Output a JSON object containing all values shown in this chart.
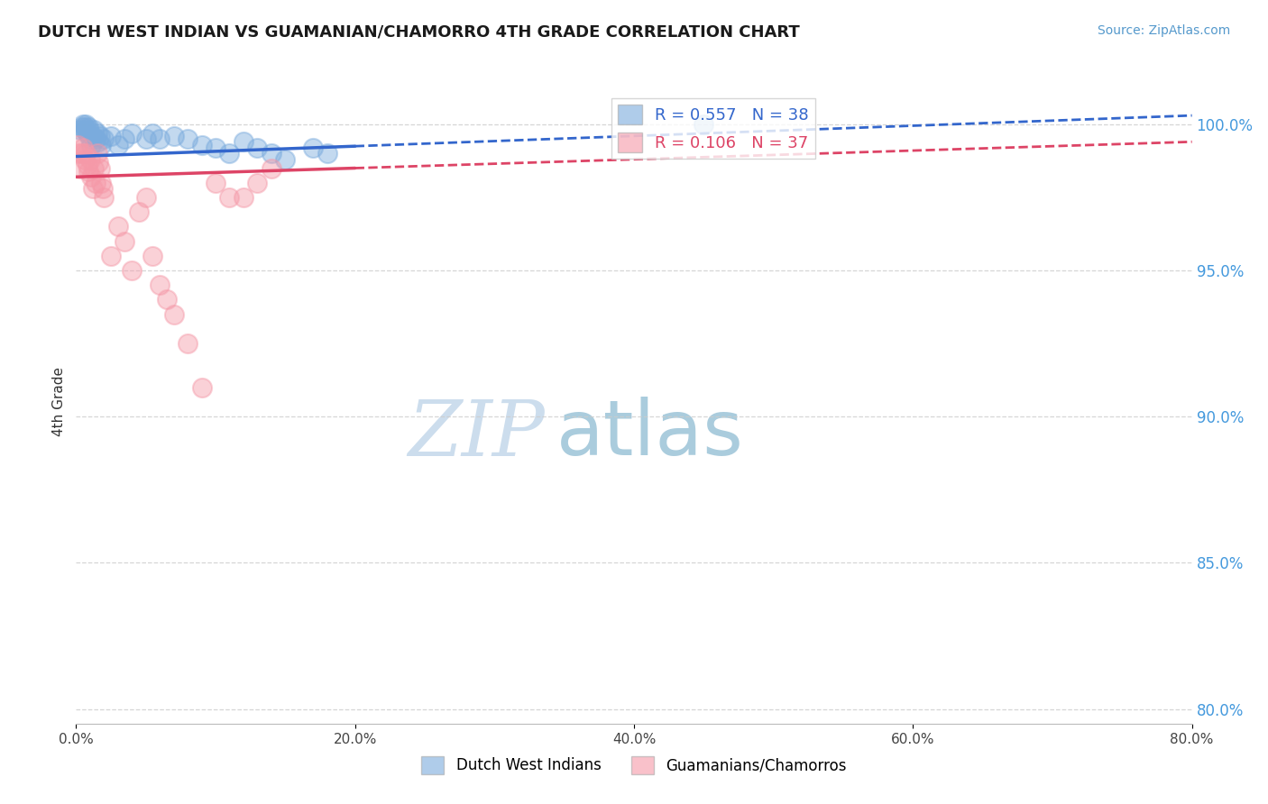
{
  "title": "DUTCH WEST INDIAN VS GUAMANIAN/CHAMORRO 4TH GRADE CORRELATION CHART",
  "source_text": "Source: ZipAtlas.com",
  "ylabel": "4th Grade",
  "x_ticks_labels": [
    "0.0%",
    "20.0%",
    "40.0%",
    "60.0%",
    "80.0%"
  ],
  "x_ticks_vals": [
    0.0,
    20.0,
    40.0,
    60.0,
    80.0
  ],
  "y_ticks_labels": [
    "80.0%",
    "85.0%",
    "90.0%",
    "95.0%",
    "100.0%"
  ],
  "y_ticks_vals": [
    80.0,
    85.0,
    90.0,
    95.0,
    100.0
  ],
  "blue_R": "0.557",
  "blue_N": "38",
  "pink_R": "0.106",
  "pink_N": "37",
  "blue_scatter_color": "#7aabdd",
  "pink_scatter_color": "#f599a8",
  "trend_blue_color": "#3366cc",
  "trend_pink_color": "#dd4466",
  "legend_text_blue_color": "#3366cc",
  "legend_text_pink_color": "#dd4466",
  "y_tick_color": "#4499dd",
  "watermark_zip_color": "#ccdded",
  "watermark_atlas_color": "#aaccdd",
  "title_color": "#1a1a1a",
  "source_color": "#5599cc",
  "xlim": [
    0,
    80
  ],
  "ylim": [
    79.5,
    101.5
  ],
  "blue_trend_x0": 0.0,
  "blue_trend_y0": 98.9,
  "blue_trend_x1": 80.0,
  "blue_trend_y1": 100.3,
  "pink_trend_x0": 0.0,
  "pink_trend_y0": 98.2,
  "pink_trend_x1": 80.0,
  "pink_trend_y1": 99.4,
  "trend_solid_xmax": 20.0,
  "blue_x": [
    0.3,
    0.4,
    0.5,
    0.6,
    0.65,
    0.7,
    0.8,
    0.85,
    0.9,
    1.0,
    1.1,
    1.2,
    1.3,
    1.4,
    1.5,
    1.6,
    1.7,
    1.8,
    2.0,
    2.5,
    3.0,
    3.5,
    4.0,
    5.0,
    5.5,
    6.0,
    7.0,
    8.0,
    9.0,
    10.0,
    11.0,
    12.0,
    13.0,
    14.0,
    15.0,
    17.0,
    18.0,
    45.0
  ],
  "blue_y": [
    99.8,
    99.9,
    100.0,
    99.9,
    99.8,
    100.0,
    99.7,
    99.8,
    99.9,
    99.5,
    99.3,
    99.6,
    99.8,
    99.5,
    99.7,
    99.4,
    99.6,
    99.3,
    99.5,
    99.6,
    99.3,
    99.5,
    99.7,
    99.5,
    99.7,
    99.5,
    99.6,
    99.5,
    99.3,
    99.2,
    99.0,
    99.4,
    99.2,
    99.0,
    98.8,
    99.2,
    99.0,
    100.0
  ],
  "pink_x": [
    0.1,
    0.2,
    0.3,
    0.4,
    0.5,
    0.6,
    0.7,
    0.8,
    0.9,
    1.0,
    1.1,
    1.2,
    1.3,
    1.4,
    1.5,
    1.6,
    1.7,
    1.8,
    1.9,
    2.0,
    2.5,
    3.0,
    3.5,
    4.0,
    4.5,
    5.0,
    5.5,
    6.0,
    6.5,
    7.0,
    8.0,
    9.0,
    10.0,
    11.0,
    12.0,
    13.0,
    14.0
  ],
  "pink_y": [
    99.3,
    99.0,
    98.5,
    99.0,
    99.2,
    98.8,
    99.0,
    98.6,
    98.4,
    98.8,
    98.2,
    97.8,
    98.5,
    98.0,
    99.0,
    98.7,
    98.5,
    98.0,
    97.8,
    97.5,
    95.5,
    96.5,
    96.0,
    95.0,
    97.0,
    97.5,
    95.5,
    94.5,
    94.0,
    93.5,
    92.5,
    91.0,
    98.0,
    97.5,
    97.5,
    98.0,
    98.5
  ]
}
